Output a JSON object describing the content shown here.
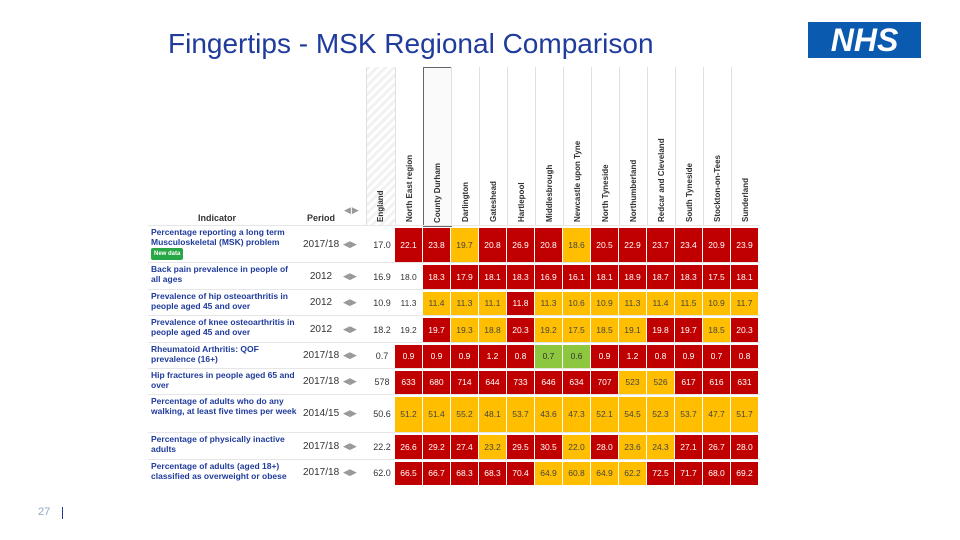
{
  "slide": {
    "title": "Fingertips - MSK Regional Comparison",
    "page_number": "27",
    "logo_text": "NHS"
  },
  "table": {
    "indicator_header": "Indicator",
    "period_header": "Period",
    "sort_arrows": "◀▶",
    "england_header": "England",
    "new_data_badge": "New data",
    "colors": {
      "red": "#c00000",
      "amber": "#ffbf00",
      "green": "#8dc63f"
    },
    "areas": [
      "North East region",
      "County Durham",
      "Darlington",
      "Gateshead",
      "Hartlepool",
      "Middlesbrough",
      "Newcastle upon Tyne",
      "North Tyneside",
      "Northumberland",
      "Redcar and Cleveland",
      "South Tyneside",
      "Stockton-on-Tees",
      "Sunderland"
    ],
    "rows": [
      {
        "name": "Percentage reporting a long term Musculoskeletal (MSK) problem",
        "new_data": true,
        "period": "2017/18",
        "england": "17.0",
        "values": [
          "22.1",
          "23.8",
          "19.7",
          "20.8",
          "26.9",
          "20.8",
          "18.6",
          "20.5",
          "22.9",
          "23.7",
          "23.4",
          "20.9",
          "23.9"
        ],
        "status": [
          "red",
          "red",
          "amber",
          "red",
          "red",
          "red",
          "amber",
          "red",
          "red",
          "red",
          "red",
          "red",
          "red"
        ]
      },
      {
        "name": "Back pain prevalence in people of all ages",
        "new_data": false,
        "period": "2012",
        "england": "16.9",
        "values": [
          "18.0",
          "18.3",
          "17.9",
          "18.1",
          "18.3",
          "16.9",
          "16.1",
          "18.1",
          "18.9",
          "18.7",
          "18.3",
          "17.5",
          "18.1"
        ],
        "status": [
          "none",
          "red",
          "red",
          "red",
          "red",
          "red",
          "red",
          "red",
          "red",
          "red",
          "red",
          "red",
          "red"
        ]
      },
      {
        "name": "Prevalence of hip osteoarthritis in people aged 45 and over",
        "new_data": false,
        "period": "2012",
        "england": "10.9",
        "values": [
          "11.3",
          "11.4",
          "11.3",
          "11.1",
          "11.8",
          "11.3",
          "10.6",
          "10.9",
          "11.3",
          "11.4",
          "11.5",
          "10.9",
          "11.7"
        ],
        "status": [
          "none",
          "amber",
          "amber",
          "amber",
          "red",
          "amber",
          "amber",
          "amber",
          "amber",
          "amber",
          "amber",
          "amber",
          "amber"
        ]
      },
      {
        "name": "Prevalence of knee osteoarthritis in people aged 45 and over",
        "new_data": false,
        "period": "2012",
        "england": "18.2",
        "values": [
          "19.2",
          "19.7",
          "19.3",
          "18.8",
          "20.3",
          "19.2",
          "17.5",
          "18.5",
          "19.1",
          "19.8",
          "19.7",
          "18.5",
          "20.3"
        ],
        "status": [
          "none",
          "red",
          "amber",
          "amber",
          "red",
          "amber",
          "amber",
          "amber",
          "amber",
          "red",
          "red",
          "amber",
          "red"
        ]
      },
      {
        "name": "Rheumatoid Arthritis: QOF prevalence (16+)",
        "new_data": false,
        "period": "2017/18",
        "england": "0.7",
        "values": [
          "0.9",
          "0.9",
          "0.9",
          "1.2",
          "0.8",
          "0.7",
          "0.6",
          "0.9",
          "1.2",
          "0.8",
          "0.9",
          "0.7",
          "0.8"
        ],
        "status": [
          "red",
          "red",
          "red",
          "red",
          "red",
          "green",
          "green",
          "red",
          "red",
          "red",
          "red",
          "red",
          "red"
        ]
      },
      {
        "name": "Hip fractures in people aged 65 and over",
        "new_data": false,
        "period": "2017/18",
        "england": "578",
        "values": [
          "633",
          "680",
          "714",
          "644",
          "733",
          "646",
          "634",
          "707",
          "523",
          "526",
          "617",
          "616",
          "631"
        ],
        "status": [
          "red",
          "red",
          "red",
          "red",
          "red",
          "red",
          "red",
          "red",
          "amber",
          "amber",
          "red",
          "red",
          "red"
        ]
      },
      {
        "name": "Percentage of adults who do any walking, at least five times per week",
        "new_data": false,
        "period": "2014/15",
        "england": "50.6",
        "values": [
          "51.2",
          "51.4",
          "55.2",
          "48.1",
          "53.7",
          "43.6",
          "47.3",
          "52.1",
          "54.5",
          "52.3",
          "53.7",
          "47.7",
          "51.7"
        ],
        "status": [
          "amber",
          "amber",
          "amber",
          "amber",
          "amber",
          "amber",
          "amber",
          "amber",
          "amber",
          "amber",
          "amber",
          "amber",
          "amber"
        ]
      },
      {
        "name": "Percentage of physically inactive adults",
        "new_data": false,
        "period": "2017/18",
        "england": "22.2",
        "values": [
          "26.6",
          "29.2",
          "27.4",
          "23.2",
          "29.5",
          "30.5",
          "22.0",
          "28.0",
          "23.6",
          "24.3",
          "27.1",
          "26.7",
          "28.0"
        ],
        "status": [
          "red",
          "red",
          "red",
          "amber",
          "red",
          "red",
          "amber",
          "red",
          "amber",
          "amber",
          "red",
          "red",
          "red"
        ]
      },
      {
        "name": "Percentage of adults (aged 18+) classified as overweight or obese",
        "new_data": false,
        "period": "2017/18",
        "england": "62.0",
        "values": [
          "66.5",
          "66.7",
          "68.3",
          "68.3",
          "70.4",
          "64.9",
          "60.8",
          "64.9",
          "62.2",
          "72.5",
          "71.7",
          "68.0",
          "69.2"
        ],
        "status": [
          "red",
          "red",
          "red",
          "red",
          "red",
          "amber",
          "amber",
          "amber",
          "amber",
          "red",
          "red",
          "red",
          "red"
        ]
      }
    ]
  }
}
